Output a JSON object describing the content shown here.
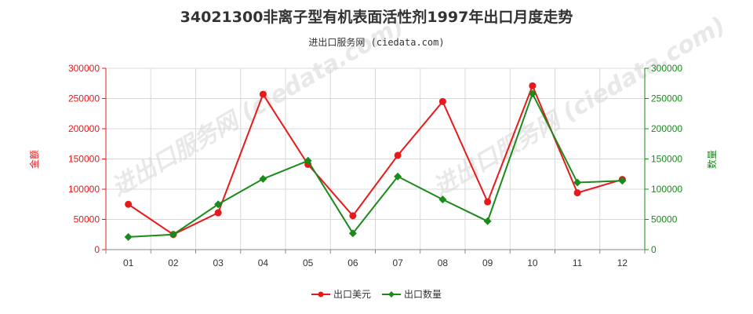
{
  "chart_data": {
    "type": "line",
    "title": "34021300非离子型有机表面活性剂1997年出口月度走势",
    "subtitle": "进出口服务网 (ciedata.com)",
    "watermark": "进出口服务网 (ciedata.com)",
    "categories": [
      "01",
      "02",
      "03",
      "04",
      "05",
      "06",
      "07",
      "08",
      "09",
      "10",
      "11",
      "12"
    ],
    "y_left": {
      "label": "金额",
      "range": [
        0,
        300000
      ],
      "ticks": [
        "0",
        "50000",
        "100000",
        "150000",
        "200000",
        "250000",
        "300000"
      ],
      "color": "#e8191b"
    },
    "y_right": {
      "label": "数量",
      "range": [
        0,
        300000
      ],
      "ticks": [
        "0",
        "50000",
        "100000",
        "150000",
        "200000",
        "250000",
        "300000"
      ],
      "color": "#1a8a1a"
    },
    "series": [
      {
        "name": "出口美元",
        "axis": "left",
        "color": "#e8191b",
        "marker": "circle",
        "values": [
          75000,
          25000,
          61000,
          257000,
          141000,
          56000,
          156000,
          245000,
          79000,
          271000,
          94000,
          116000
        ]
      },
      {
        "name": "出口数量",
        "axis": "right",
        "color": "#1a8a1a",
        "marker": "diamond",
        "values": [
          21000,
          25000,
          75000,
          117000,
          147000,
          27000,
          121000,
          83000,
          47000,
          258000,
          111000,
          114000
        ]
      }
    ],
    "grid": true,
    "legend_position": "bottom-center"
  }
}
